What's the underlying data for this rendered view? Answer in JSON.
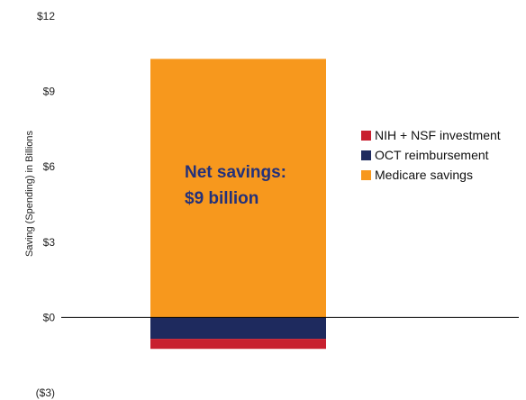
{
  "chart_data": {
    "type": "bar",
    "stacked": true,
    "ylabel": "Saving (Spending) in Billions",
    "ylim": [
      -3,
      12
    ],
    "y_ticks": [
      "$12",
      "$9",
      "$6",
      "$3",
      "$0",
      "($3)"
    ],
    "y_tick_values": [
      12,
      9,
      6,
      3,
      0,
      -3
    ],
    "categories": [
      ""
    ],
    "series": [
      {
        "name": "Medicare savings",
        "values": [
          10.3
        ],
        "color": "#f7981d"
      },
      {
        "name": "OCT reimbursement",
        "values": [
          -0.85
        ],
        "color": "#1e2a5e"
      },
      {
        "name": "NIH + NSF investment",
        "values": [
          -0.4
        ],
        "color": "#c8202f"
      }
    ],
    "legend_order": [
      "NIH + NSF investment",
      "OCT reimbursement",
      "Medicare savings"
    ],
    "legend_position": "right",
    "annotation": {
      "line1": "Net savings:",
      "line2": "$9 billion"
    },
    "grid": false
  }
}
